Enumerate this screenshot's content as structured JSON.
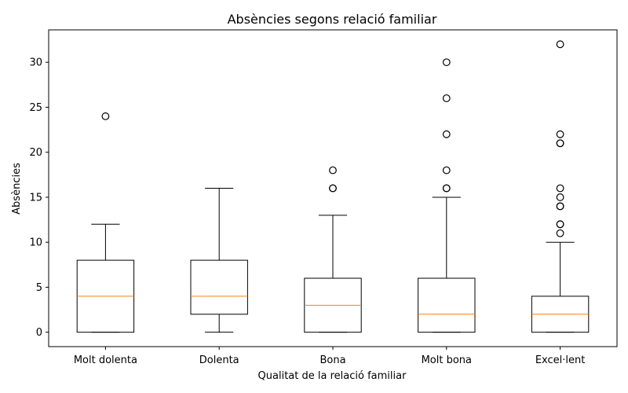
{
  "chart_data": {
    "type": "box",
    "title": "Absències segons relació familiar",
    "xlabel": "Qualitat de la relació familiar",
    "ylabel": "Absències",
    "ylim": [
      -1.6,
      33.6
    ],
    "yticks": [
      0,
      5,
      10,
      15,
      20,
      25,
      30
    ],
    "grid": false,
    "colors": {
      "box": "#000000",
      "median": "#ff7f0e",
      "flier": "#000000"
    },
    "categories": [
      "Molt dolenta",
      "Dolenta",
      "Bona",
      "Molt bona",
      "Excel·lent"
    ],
    "boxes": [
      {
        "category": "Molt dolenta",
        "whisker_low": 0,
        "q1": 0,
        "median": 4,
        "q3": 8,
        "whisker_high": 12,
        "fliers": [
          24
        ]
      },
      {
        "category": "Dolenta",
        "whisker_low": 0,
        "q1": 2,
        "median": 4,
        "q3": 8,
        "whisker_high": 16,
        "fliers": []
      },
      {
        "category": "Bona",
        "whisker_low": 0,
        "q1": 0,
        "median": 3,
        "q3": 6,
        "whisker_high": 13,
        "fliers": [
          16,
          16,
          18
        ]
      },
      {
        "category": "Molt bona",
        "whisker_low": 0,
        "q1": 0,
        "median": 2,
        "q3": 6,
        "whisker_high": 15,
        "fliers": [
          16,
          16,
          18,
          22,
          26,
          30
        ]
      },
      {
        "category": "Excel·lent",
        "whisker_low": 0,
        "q1": 0,
        "median": 2,
        "q3": 4,
        "whisker_high": 10,
        "fliers": [
          11,
          12,
          12,
          14,
          14,
          15,
          16,
          21,
          21,
          22,
          32
        ]
      }
    ]
  }
}
